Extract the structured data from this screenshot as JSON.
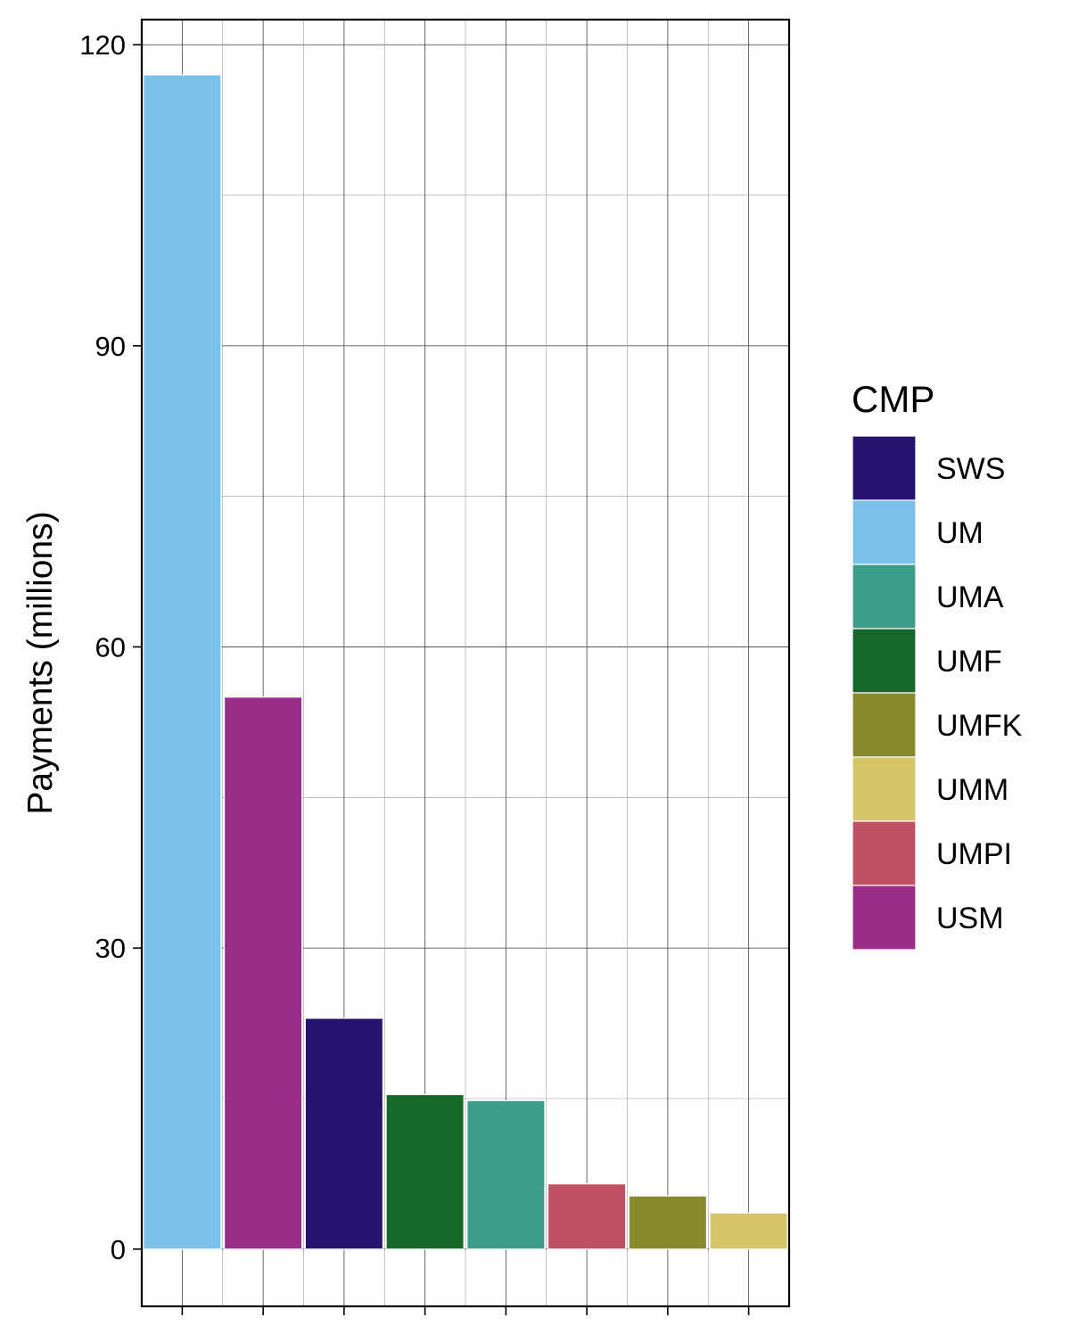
{
  "chart_data": {
    "type": "bar",
    "title": "",
    "xlabel": "",
    "ylabel": "Payments (millions)",
    "ylim": [
      -5.7,
      122.5
    ],
    "yticks": [
      0,
      30,
      60,
      90,
      120
    ],
    "categories": [
      "UM",
      "USM",
      "SWS",
      "UMF",
      "UMA",
      "UMPI",
      "UMFK",
      "UMM"
    ],
    "values": [
      117,
      55,
      23,
      15.4,
      14.8,
      6.5,
      5.3,
      3.6
    ],
    "grid": true,
    "legend": {
      "title": "CMP",
      "position": "right",
      "items": [
        {
          "label": "SWS",
          "color": "#26136F"
        },
        {
          "label": "UM",
          "color": "#7AC0E9"
        },
        {
          "label": "UMA",
          "color": "#3A9E89"
        },
        {
          "label": "UMF",
          "color": "#156827"
        },
        {
          "label": "UMFK",
          "color": "#888A2A"
        },
        {
          "label": "UMM",
          "color": "#D6C566"
        },
        {
          "label": "UMPI",
          "color": "#C05065"
        },
        {
          "label": "USM",
          "color": "#9A2E86"
        }
      ]
    }
  }
}
